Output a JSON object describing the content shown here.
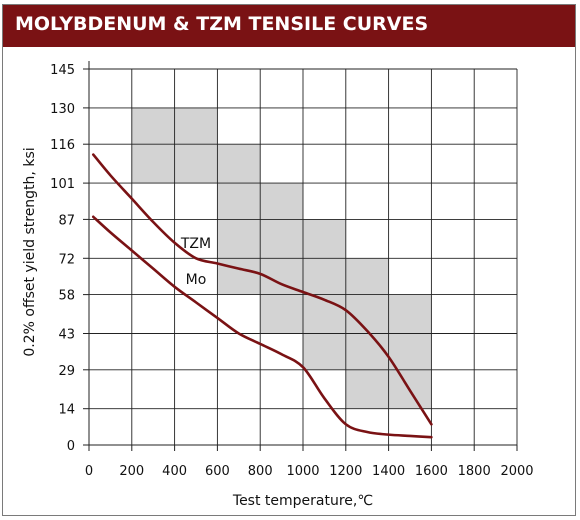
{
  "title": "MOLYBDENUM & TZM TENSILE CURVES",
  "chart_data": {
    "type": "line",
    "xlabel": "Test temperature,℃",
    "ylabel": "0.2% offset yield strength, ksi",
    "xlim": [
      0,
      2000
    ],
    "ylim": [
      0,
      145
    ],
    "x_ticks": [
      0,
      200,
      400,
      600,
      800,
      1000,
      1200,
      1400,
      1600,
      1800,
      2000
    ],
    "y_ticks": [
      0,
      14,
      29,
      43,
      58,
      72,
      87,
      101,
      116,
      130,
      145
    ],
    "grid": true,
    "series": [
      {
        "name": "TZM",
        "color": "#7a1214",
        "x": [
          20,
          100,
          200,
          300,
          400,
          500,
          600,
          700,
          800,
          900,
          1000,
          1100,
          1200,
          1300,
          1400,
          1500,
          1600
        ],
        "y": [
          112,
          104,
          95,
          86,
          78,
          72,
          70,
          68,
          66,
          62,
          59,
          56,
          52,
          44,
          34,
          21,
          8
        ]
      },
      {
        "name": "Mo",
        "color": "#7a1214",
        "x": [
          20,
          100,
          200,
          300,
          400,
          500,
          600,
          700,
          800,
          900,
          1000,
          1100,
          1200,
          1300,
          1400,
          1500,
          1600
        ],
        "y": [
          88,
          82,
          75,
          68,
          61,
          55,
          49,
          43,
          39,
          35,
          30,
          18,
          8,
          5,
          4,
          3.5,
          3
        ]
      }
    ],
    "shaded_regions": [
      {
        "x": [
          200,
          600
        ],
        "y": [
          101,
          130
        ]
      },
      {
        "x": [
          600,
          800
        ],
        "y": [
          58,
          116
        ]
      },
      {
        "x": [
          800,
          1000
        ],
        "y": [
          43,
          101
        ]
      },
      {
        "x": [
          1000,
          1200
        ],
        "y": [
          29,
          87
        ]
      },
      {
        "x": [
          1200,
          1400
        ],
        "y": [
          14,
          72
        ]
      },
      {
        "x": [
          1400,
          1600
        ],
        "y": [
          14,
          58
        ]
      }
    ],
    "series_label_positions": [
      {
        "name": "TZM",
        "x": 500,
        "y": 76
      },
      {
        "name": "Mo",
        "x": 500,
        "y": 62
      }
    ]
  }
}
